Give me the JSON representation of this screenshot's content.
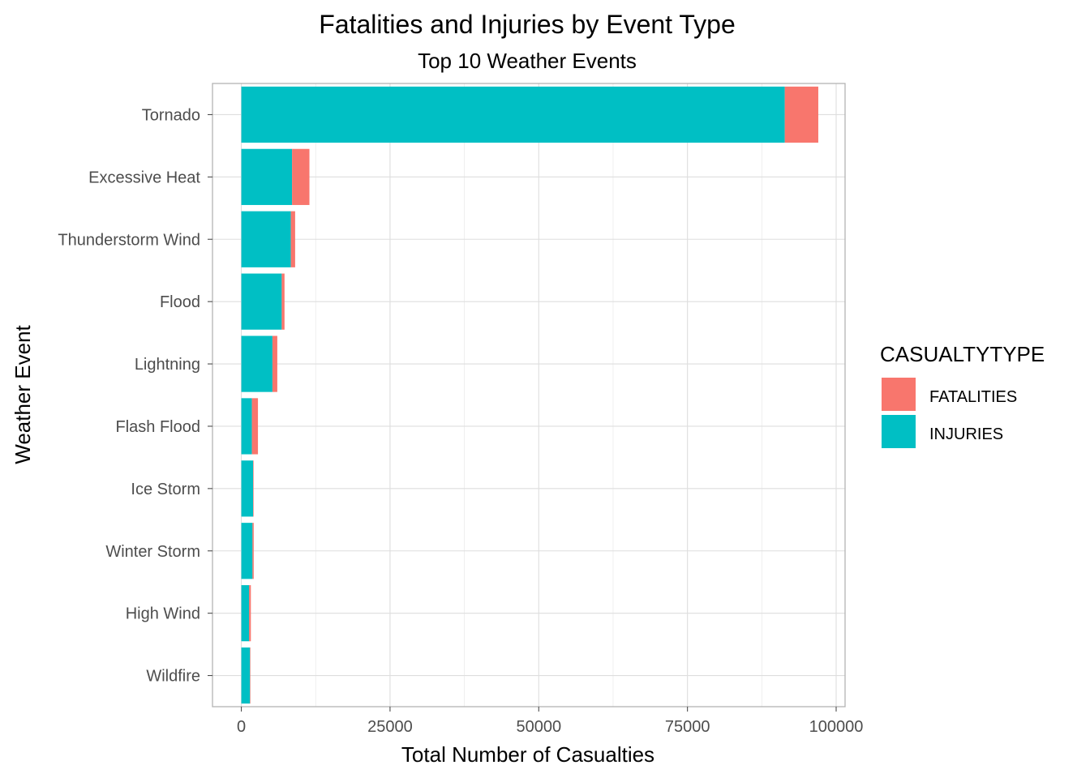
{
  "chart_data": {
    "type": "bar",
    "orientation": "horizontal",
    "stacked": true,
    "title": "Fatalities and Injuries by Event Type",
    "subtitle": "Top 10 Weather Events",
    "xlabel": "Total Number of Casualties",
    "ylabel": "Weather Event",
    "xlim": [
      -4850,
      101500
    ],
    "x_ticks": [
      0,
      25000,
      50000,
      75000,
      100000
    ],
    "x_tick_labels": [
      "0",
      "25000",
      "50000",
      "75000",
      "100000"
    ],
    "grid": true,
    "legend_position": "right",
    "legend_title": "CASUALTYTYPE",
    "categories": [
      "Tornado",
      "Excessive Heat",
      "Thunderstorm Wind",
      "Flood",
      "Lightning",
      "Flash Flood",
      "Ice Storm",
      "Winter Storm",
      "High Wind",
      "Wildfire"
    ],
    "series": [
      {
        "name": "INJURIES",
        "color": "#00BFC4",
        "values": [
          91364,
          8525,
          8320,
          6789,
          5230,
          1777,
          1975,
          1876,
          1300,
          1456
        ]
      },
      {
        "name": "FATALITIES",
        "color": "#F8766D",
        "values": [
          5633,
          2922,
          725,
          470,
          817,
          1018,
          89,
          206,
          300,
          75
        ]
      }
    ]
  }
}
